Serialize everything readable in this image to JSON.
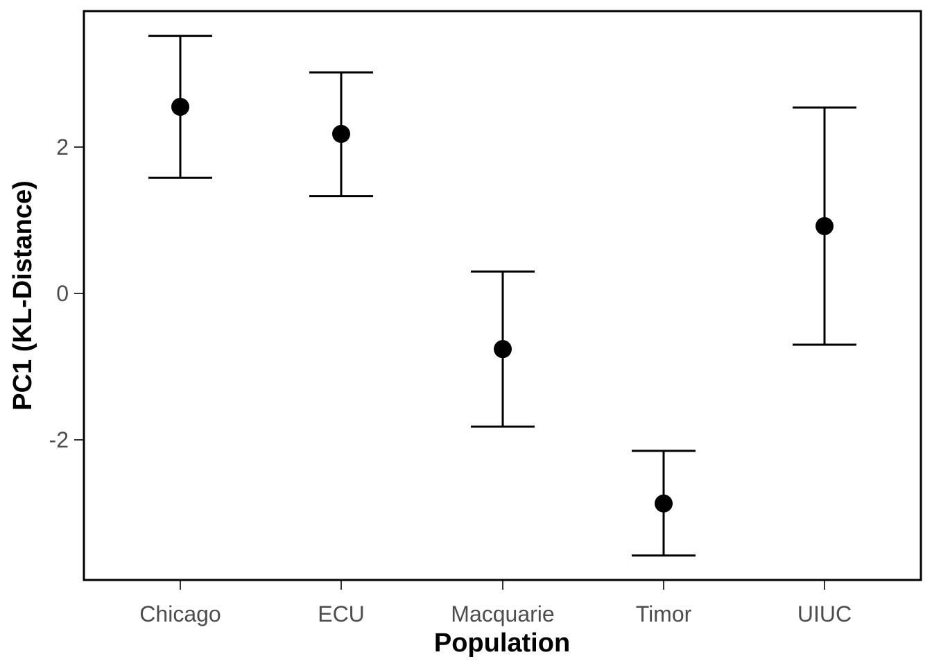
{
  "chart_data": {
    "type": "errorbar",
    "title": "",
    "xlabel": "Population",
    "ylabel": "PC1 (KL-Distance)",
    "categories": [
      "Chicago",
      "ECU",
      "Macquarie",
      "Timor",
      "UIUC"
    ],
    "series": [
      {
        "values": [
          2.55,
          2.18,
          -0.76,
          -2.87,
          0.92
        ],
        "lower": [
          1.58,
          1.33,
          -1.82,
          -3.58,
          -0.7
        ],
        "upper": [
          3.52,
          3.02,
          0.3,
          -2.15,
          2.54
        ]
      }
    ],
    "yticks": [
      -2,
      0,
      2
    ],
    "ytick_labels": [
      "-2",
      "0",
      "2"
    ],
    "ylim": [
      -3.9,
      3.85
    ],
    "grid": false,
    "legend": "none",
    "colors": {
      "marker": "#000000",
      "errorbar": "#000000",
      "frame": "#000000",
      "tick_text": "#4d4d4d"
    }
  }
}
